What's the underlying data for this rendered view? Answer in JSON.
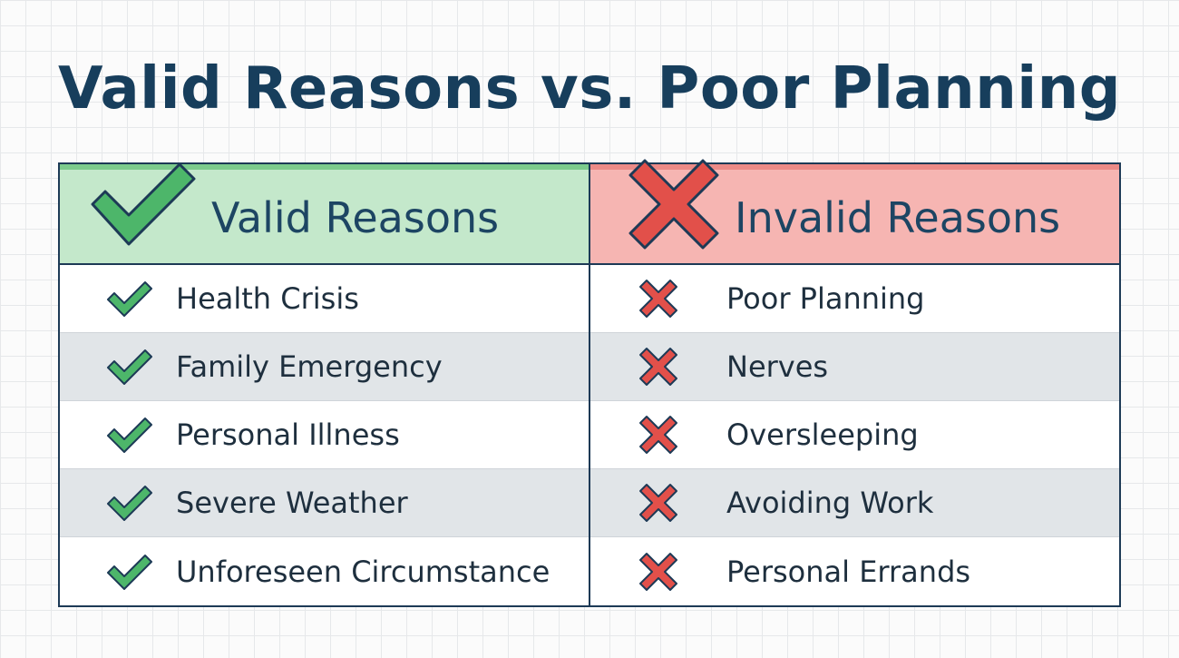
{
  "title": "Valid Reasons vs. Poor Planning",
  "colors": {
    "title": "#173e5c",
    "valid_header_bg": "#c4e8cb",
    "invalid_header_bg": "#f6b5b2",
    "check_green": "#4db66a",
    "cross_red": "#e2504a",
    "border": "#1d3a56",
    "alt_row": "#e1e5e8"
  },
  "valid": {
    "header": "Valid Reasons",
    "header_icon": "checkmark-icon",
    "items": [
      {
        "label": "Health Crisis",
        "icon": "checkmark-icon"
      },
      {
        "label": "Family Emergency",
        "icon": "checkmark-icon"
      },
      {
        "label": "Personal Illness",
        "icon": "checkmark-icon"
      },
      {
        "label": "Severe Weather",
        "icon": "checkmark-icon"
      },
      {
        "label": "Unforeseen Circumstance",
        "icon": "checkmark-icon"
      }
    ]
  },
  "invalid": {
    "header": "Invalid Reasons",
    "header_icon": "cross-icon",
    "items": [
      {
        "label": "Poor Planning",
        "icon": "cross-icon"
      },
      {
        "label": "Nerves",
        "icon": "cross-icon"
      },
      {
        "label": "Oversleeping",
        "icon": "cross-icon"
      },
      {
        "label": "Avoiding Work",
        "icon": "cross-icon"
      },
      {
        "label": "Personal Errands",
        "icon": "cross-icon"
      }
    ]
  }
}
